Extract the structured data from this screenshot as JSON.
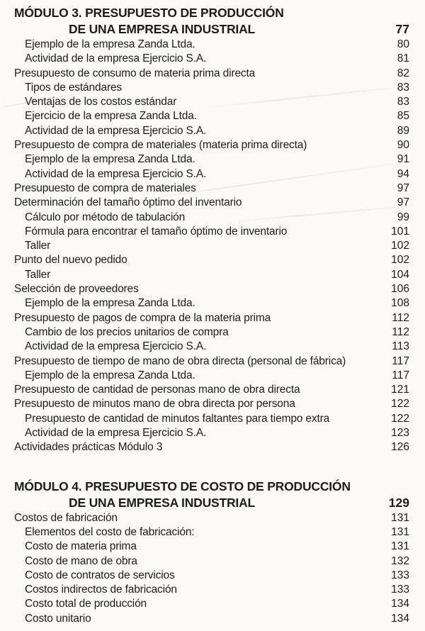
{
  "colors": {
    "background": "#fbfaf8",
    "text": "#1c1c1c"
  },
  "toc": {
    "sections": [
      {
        "heading_line1": "MÓDULO 3. PRESUPUESTO DE PRODUCCIÓN",
        "heading_line2": "DE UNA EMPRESA INDUSTRIAL",
        "heading_page": "77",
        "entries": [
          {
            "label": "Ejemplo de la empresa Zanda Ltda.",
            "page": "80",
            "indent": 1
          },
          {
            "label": "Actividad de la empresa Ejercicio S.A.",
            "page": "81",
            "indent": 1
          },
          {
            "label": "Presupuesto de consumo de materia prima directa",
            "page": "82",
            "indent": 0
          },
          {
            "label": "Tipos de estándares",
            "page": "83",
            "indent": 1
          },
          {
            "label": "Ventajas de los costos estándar",
            "page": "83",
            "indent": 1
          },
          {
            "label": "Ejercicio de la empresa Zanda Ltda.",
            "page": "85",
            "indent": 1
          },
          {
            "label": "Actividad de la empresa Ejercicio S.A.",
            "page": "89",
            "indent": 1
          },
          {
            "label": "Presupuesto de compra de materiales (materia prima directa)",
            "page": "90",
            "indent": 0
          },
          {
            "label": "Ejemplo de la empresa Zanda Ltda.",
            "page": "91",
            "indent": 1
          },
          {
            "label": "Actividad de la empresa Ejercicio S.A.",
            "page": "94",
            "indent": 1
          },
          {
            "label": "Presupuesto de compra de materiales",
            "page": "97",
            "indent": 0
          },
          {
            "label": "Determinación del tamaño óptimo del inventario",
            "page": "97",
            "indent": 0
          },
          {
            "label": "Cálculo por método de tabulación",
            "page": "99",
            "indent": 1
          },
          {
            "label": "Fórmula para encontrar el tamaño óptimo de inventario",
            "page": "101",
            "indent": 1
          },
          {
            "label": "Taller",
            "page": "102",
            "indent": 1
          },
          {
            "label": "Punto del nuevo pedido",
            "page": "102",
            "indent": 0
          },
          {
            "label": "Taller",
            "page": "104",
            "indent": 1
          },
          {
            "label": "Selección de proveedores",
            "page": "106",
            "indent": 0
          },
          {
            "label": "Ejemplo de la empresa Zanda Ltda.",
            "page": "108",
            "indent": 1
          },
          {
            "label": "Presupuesto de pagos de compra de la materia prima",
            "page": "112",
            "indent": 0
          },
          {
            "label": "Cambio de los precios unitarios de compra",
            "page": "112",
            "indent": 1
          },
          {
            "label": "Actividad de la empresa Ejercicio S.A.",
            "page": "113",
            "indent": 1
          },
          {
            "label": "Presupuesto de tiempo de mano de obra directa (personal de fábrica)",
            "page": "117",
            "indent": 0
          },
          {
            "label": "Ejemplo de la empresa Zanda Ltda.",
            "page": "117",
            "indent": 1
          },
          {
            "label": "Presupuesto de cantidad de personas mano de obra directa",
            "page": "121",
            "indent": 0
          },
          {
            "label": "Presupuesto de minutos mano de obra directa por persona",
            "page": "122",
            "indent": 0
          },
          {
            "label": "Presupuesto de cantidad de minutos faltantes para tiempo extra",
            "page": "122",
            "indent": 1
          },
          {
            "label": "Actividad de la empresa Ejercicio S.A.",
            "page": "123",
            "indent": 1
          },
          {
            "label": "Actividades prácticas Módulo 3",
            "page": "126",
            "indent": 0
          }
        ]
      },
      {
        "heading_line1": "MÓDULO 4. PRESUPUESTO DE COSTO DE PRODUCCIÓN",
        "heading_line2": "DE UNA EMPRESA INDUSTRIAL",
        "heading_page": "129",
        "entries": [
          {
            "label": "Costos de fabricación",
            "page": "131",
            "indent": 0
          },
          {
            "label": "Elementos del costo de fabricación:",
            "page": "131",
            "indent": 1
          },
          {
            "label": "Costo de materia prima",
            "page": "131",
            "indent": 1
          },
          {
            "label": "Costo de mano de obra",
            "page": "132",
            "indent": 1
          },
          {
            "label": "Costo de contratos de servicios",
            "page": "133",
            "indent": 1
          },
          {
            "label": "Costos indirectos de fabricación",
            "page": "133",
            "indent": 1
          },
          {
            "label": "Costo total de producción",
            "page": "134",
            "indent": 1
          },
          {
            "label": "Costo unitario",
            "page": "134",
            "indent": 1
          }
        ]
      }
    ]
  }
}
